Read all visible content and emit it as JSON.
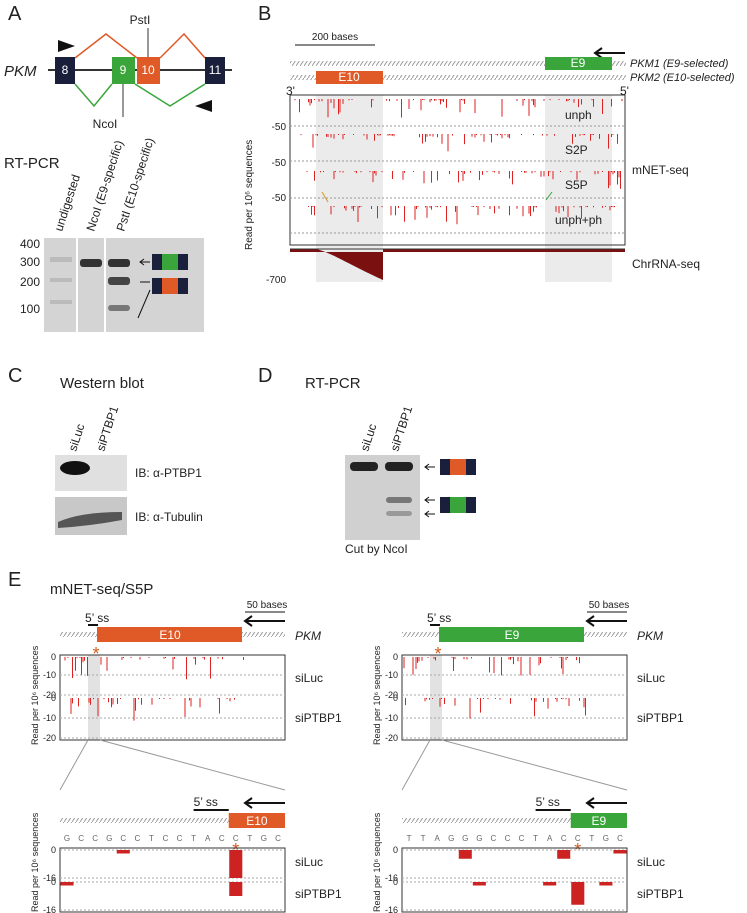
{
  "panelA": {
    "letter": "A",
    "gene": "PKM",
    "exons": [
      "8",
      "9",
      "10",
      "11"
    ],
    "enzyme_top": "PstI",
    "enzyme_bottom": "NcoI",
    "rtpcr": "RT-PCR",
    "lanes": [
      "undigested",
      "NcoI (E9-specific)",
      "PstI (E10-specific)"
    ],
    "ladder": [
      "400",
      "300",
      "200",
      "100"
    ]
  },
  "panelB": {
    "letter": "B",
    "scale": "200 bases",
    "isoforms": [
      "PKM1 (E9-selected)",
      "PKM2 (E10-selected)"
    ],
    "exons": [
      "E10",
      "E9"
    ],
    "ends": [
      "3'",
      "5'"
    ],
    "yaxis": "Read per 10⁶ sequences",
    "tracks": [
      "unph",
      "S2P",
      "S5P",
      "unph+ph"
    ],
    "ticks": [
      "-50",
      "-50",
      "-50",
      "-700"
    ],
    "mnet": "mNET-seq",
    "chr": "ChrRNA-seq"
  },
  "panelC": {
    "letter": "C",
    "title": "Western blot",
    "lanes": [
      "siLuc",
      "siPTBP1"
    ],
    "blots": [
      "IB: α-PTBP1",
      "IB: α-Tubulin"
    ]
  },
  "panelD": {
    "letter": "D",
    "title": "RT-PCR",
    "lanes": [
      "siLuc",
      "siPTBP1"
    ],
    "note": "Cut by NcoI"
  },
  "panelE": {
    "letter": "E",
    "title": "mNET-seq/S5P",
    "ss": "5’ ss",
    "scale": "50 bases",
    "gene": "PKM",
    "exons": [
      "E10",
      "E9"
    ],
    "conditions": [
      "siLuc",
      "siPTBP1"
    ],
    "yaxis": "Read per 10⁶ sequences",
    "top_ticks": [
      "0",
      "-10",
      "-20"
    ],
    "star": "*",
    "zoom": [
      {
        "sequence": [
          "G",
          "C",
          "C",
          "G",
          "C",
          "C",
          "T",
          "C",
          "C",
          "T",
          "A",
          "C",
          "C",
          "T",
          "G",
          "C"
        ],
        "ylim": [
          -16,
          0
        ],
        "yticks": [
          0,
          -16
        ],
        "series": [
          {
            "name": "siLuc",
            "color": "#cc2222",
            "values": [
              null,
              null,
              null,
              null,
              -2,
              null,
              null,
              null,
              null,
              null,
              null,
              null,
              -16,
              null,
              null,
              null
            ]
          },
          {
            "name": "siPTBP1",
            "color": "#cc2222",
            "values": [
              -2,
              null,
              null,
              null,
              null,
              null,
              null,
              null,
              null,
              null,
              null,
              null,
              -8,
              null,
              null,
              null
            ]
          }
        ]
      },
      {
        "sequence": [
          "T",
          "T",
          "A",
          "G",
          "G",
          "G",
          "C",
          "C",
          "C",
          "T",
          "A",
          "C",
          "C",
          "T",
          "G",
          "C"
        ],
        "ylim": [
          -16,
          0
        ],
        "yticks": [
          0,
          -16
        ],
        "series": [
          {
            "name": "siLuc",
            "color": "#cc2222",
            "values": [
              null,
              null,
              null,
              null,
              -5,
              null,
              null,
              null,
              null,
              null,
              null,
              -5,
              null,
              null,
              null,
              -2
            ]
          },
          {
            "name": "siPTBP1",
            "color": "#cc2222",
            "values": [
              null,
              null,
              null,
              null,
              null,
              -2,
              null,
              null,
              null,
              null,
              -2,
              null,
              -13,
              null,
              -2,
              null
            ]
          }
        ]
      }
    ]
  }
}
